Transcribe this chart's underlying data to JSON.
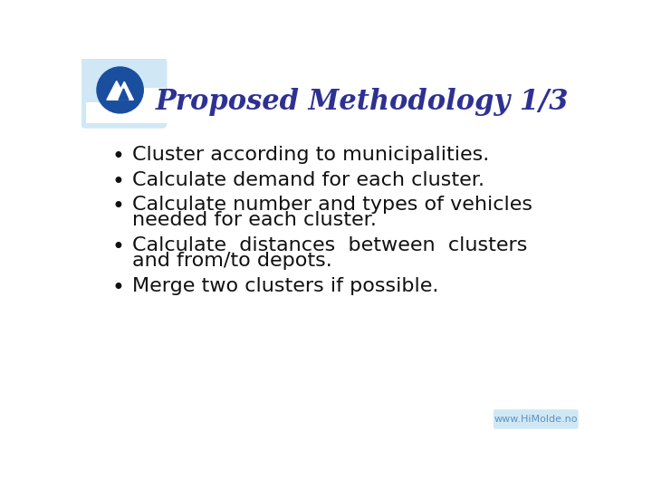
{
  "title": "Proposed Methodology 1/3",
  "title_color": "#2E3192",
  "title_fontsize": 22,
  "bullet_lines": [
    [
      "Cluster according to municipalities."
    ],
    [
      "Calculate demand for each cluster."
    ],
    [
      "Calculate number and types of vehicles",
      "needed for each cluster."
    ],
    [
      "Calculate  distances  between  clusters",
      "and from/to depots."
    ],
    [
      "Merge two clusters if possible."
    ]
  ],
  "bullet_fontsize": 16,
  "bullet_color": "#111111",
  "background_color": "#FFFFFF",
  "border_color": "#C8DFF0",
  "corner_bg_color": "#D0E8F5",
  "logo_circle_color": "#1A4FA0",
  "watermark_text": "www.HiMolde.no",
  "watermark_color": "#6090C0",
  "watermark_fontsize": 8
}
